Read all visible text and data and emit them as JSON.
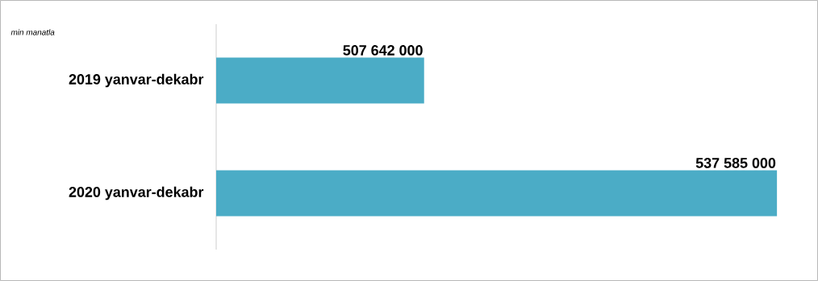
{
  "chart_data": {
    "type": "bar",
    "orientation": "horizontal",
    "categories": [
      "2019 yanvar-dekabr",
      "2020 yanvar-dekabr"
    ],
    "values": [
      507642000,
      537585000
    ],
    "value_labels": [
      "507 642 000",
      "537 585 000"
    ],
    "color": "#4bacc6",
    "xlim": [
      490000000,
      541000000
    ],
    "annotations": [
      "min manatla"
    ]
  }
}
